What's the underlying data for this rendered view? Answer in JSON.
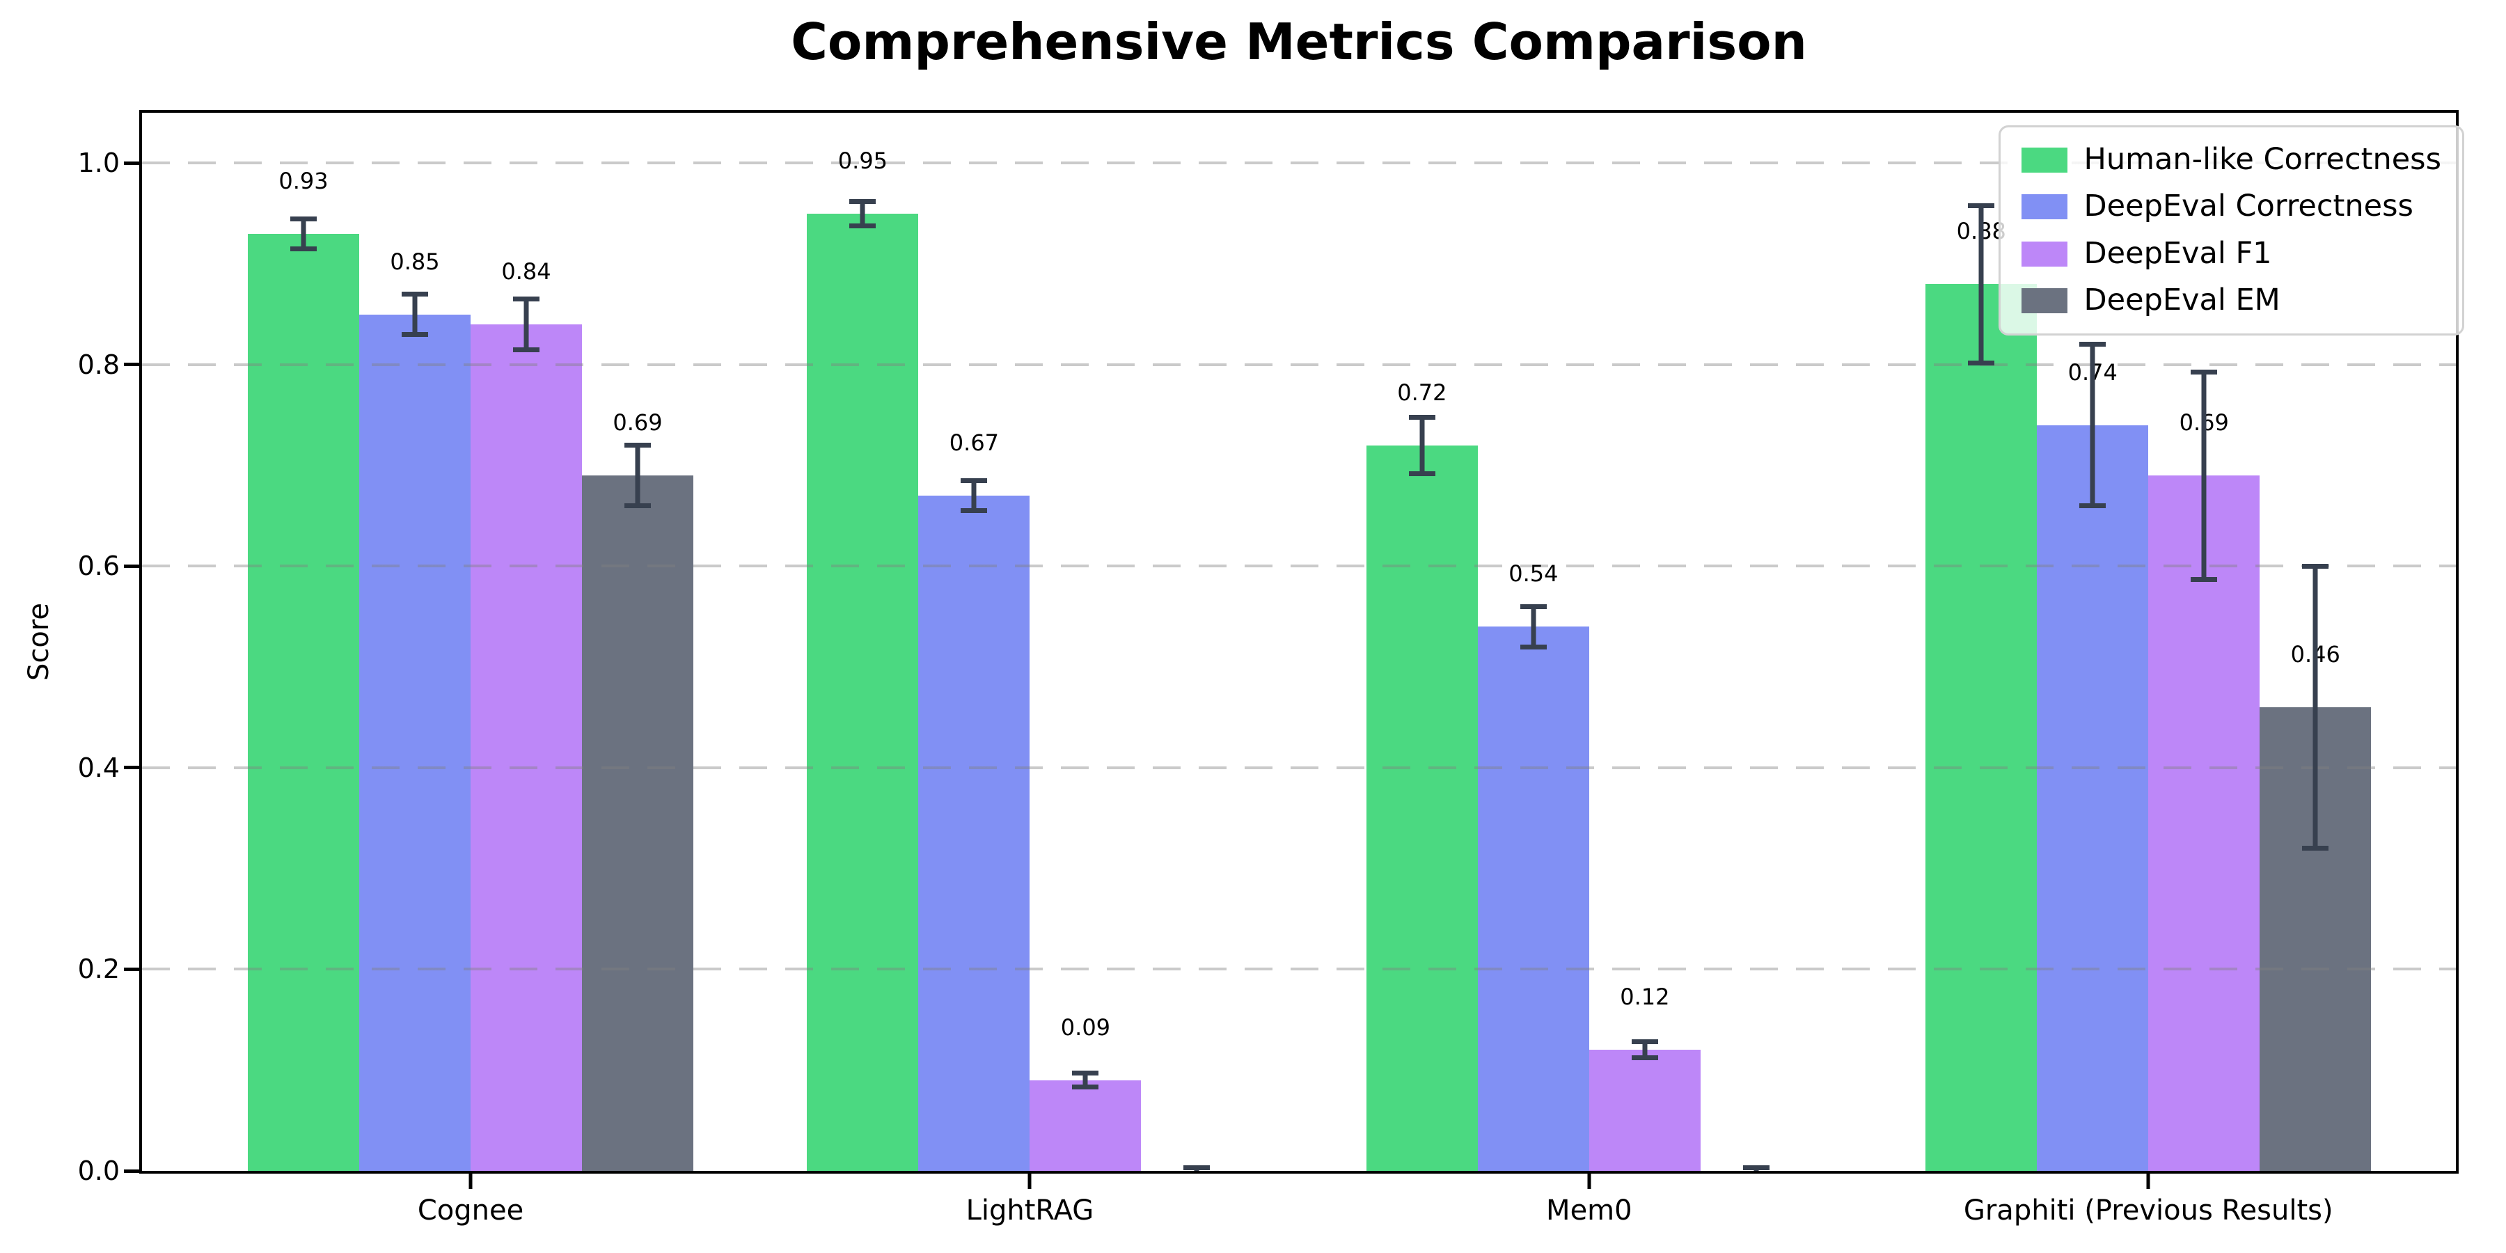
{
  "title": "Comprehensive Metrics Comparison",
  "y_axis": {
    "label": "Score",
    "tick_labels": [
      "0.0",
      "0.2",
      "0.4",
      "0.6",
      "0.8",
      "1.0"
    ]
  },
  "x_axis": {
    "tick_labels": [
      "Cognee",
      "LightRAG",
      "Mem0",
      "Graphiti (Previous Results)"
    ]
  },
  "legend": {
    "entries": [
      "Human-like Correctness",
      "DeepEval Correctness",
      "DeepEval F1",
      "DeepEval EM"
    ]
  },
  "colors": {
    "human_like": "#4bd981",
    "deepeval_correctness": "#8190f4",
    "deepeval_f1": "#bd87f8",
    "deepeval_em": "#6b7280",
    "error_bar": "#37404f",
    "grid": "rgba(128,128,128,0.42)",
    "legend_border": "#d2d2d2"
  },
  "chart_data": {
    "type": "bar",
    "title": "Comprehensive Metrics Comparison",
    "xlabel": "",
    "ylabel": "Score",
    "ylim": [
      0,
      1.05
    ],
    "yticks": [
      0.0,
      0.2,
      0.4,
      0.6,
      0.8,
      1.0
    ],
    "grid": "horizontal dashed, drawn over bars",
    "legend_position": "upper right",
    "categories": [
      "Cognee",
      "LightRAG",
      "Mem0",
      "Graphiti (Previous Results)"
    ],
    "series": [
      {
        "name": "Human-like Correctness",
        "color": "#4bd981",
        "values": [
          0.93,
          0.95,
          0.72,
          0.88
        ],
        "errors": [
          0.015,
          0.012,
          0.028,
          0.078
        ],
        "labels": [
          "0.93",
          "0.95",
          "0.72",
          "0.88"
        ]
      },
      {
        "name": "DeepEval Correctness",
        "color": "#8190f4",
        "values": [
          0.85,
          0.67,
          0.54,
          0.74
        ],
        "errors": [
          0.02,
          0.015,
          0.02,
          0.08
        ],
        "labels": [
          "0.85",
          "0.67",
          "0.54",
          "0.74"
        ]
      },
      {
        "name": "DeepEval F1",
        "color": "#bd87f8",
        "values": [
          0.84,
          0.09,
          0.12,
          0.69
        ],
        "errors": [
          0.025,
          0.007,
          0.008,
          0.103
        ],
        "labels": [
          "0.84",
          "0.09",
          "0.12",
          "0.69"
        ]
      },
      {
        "name": "DeepEval EM",
        "color": "#6b7280",
        "values": [
          0.69,
          0.0,
          0.0,
          0.46
        ],
        "errors": [
          0.03,
          0.003,
          0.003,
          0.14
        ],
        "labels": [
          "0.69",
          "",
          "",
          "0.46"
        ]
      }
    ]
  }
}
